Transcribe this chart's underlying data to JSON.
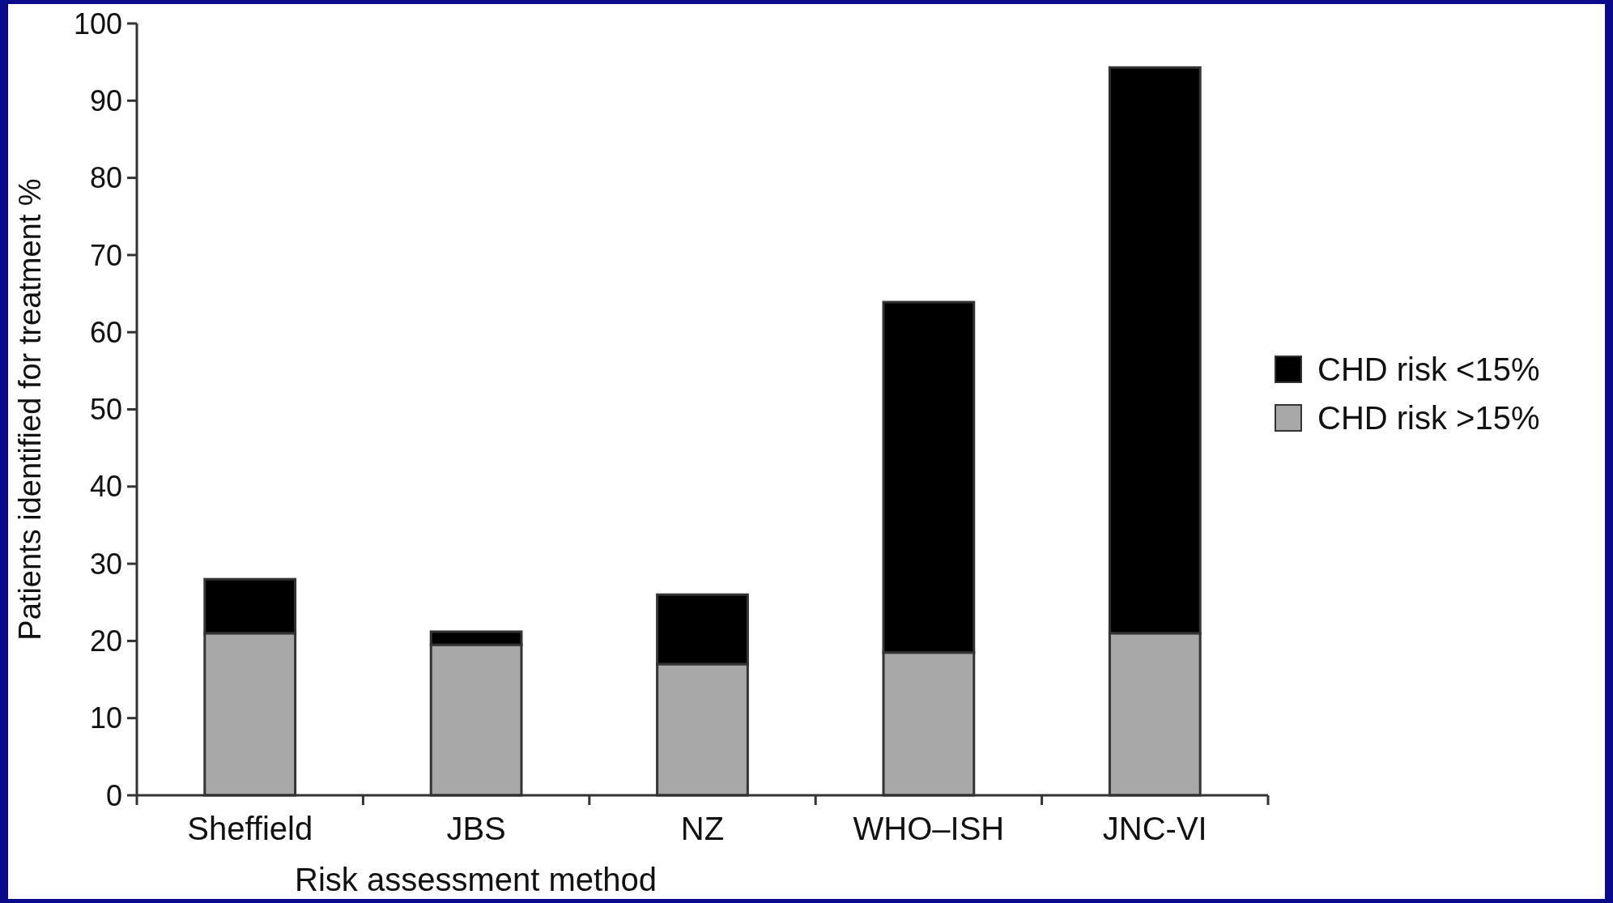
{
  "chart_data": {
    "type": "bar",
    "stacked": true,
    "xlabel": "Risk assessment method",
    "ylabel": "Patients identified for treatment %",
    "categories": [
      "Sheffield",
      "JBS",
      "NZ",
      "WHO–ISH",
      "JNC-VI"
    ],
    "series": [
      {
        "name": "CHD risk >15%",
        "color": "#a8a8a8",
        "values": [
          21,
          19.5,
          17,
          18.5,
          21
        ]
      },
      {
        "name": "CHD risk <15%",
        "color": "#000000",
        "values": [
          7,
          1.7,
          9,
          45.4,
          73.3
        ]
      }
    ],
    "ylim": [
      0,
      100
    ],
    "yticks": [
      0,
      10,
      20,
      30,
      40,
      50,
      60,
      70,
      80,
      90,
      100
    ],
    "legend": "right"
  }
}
